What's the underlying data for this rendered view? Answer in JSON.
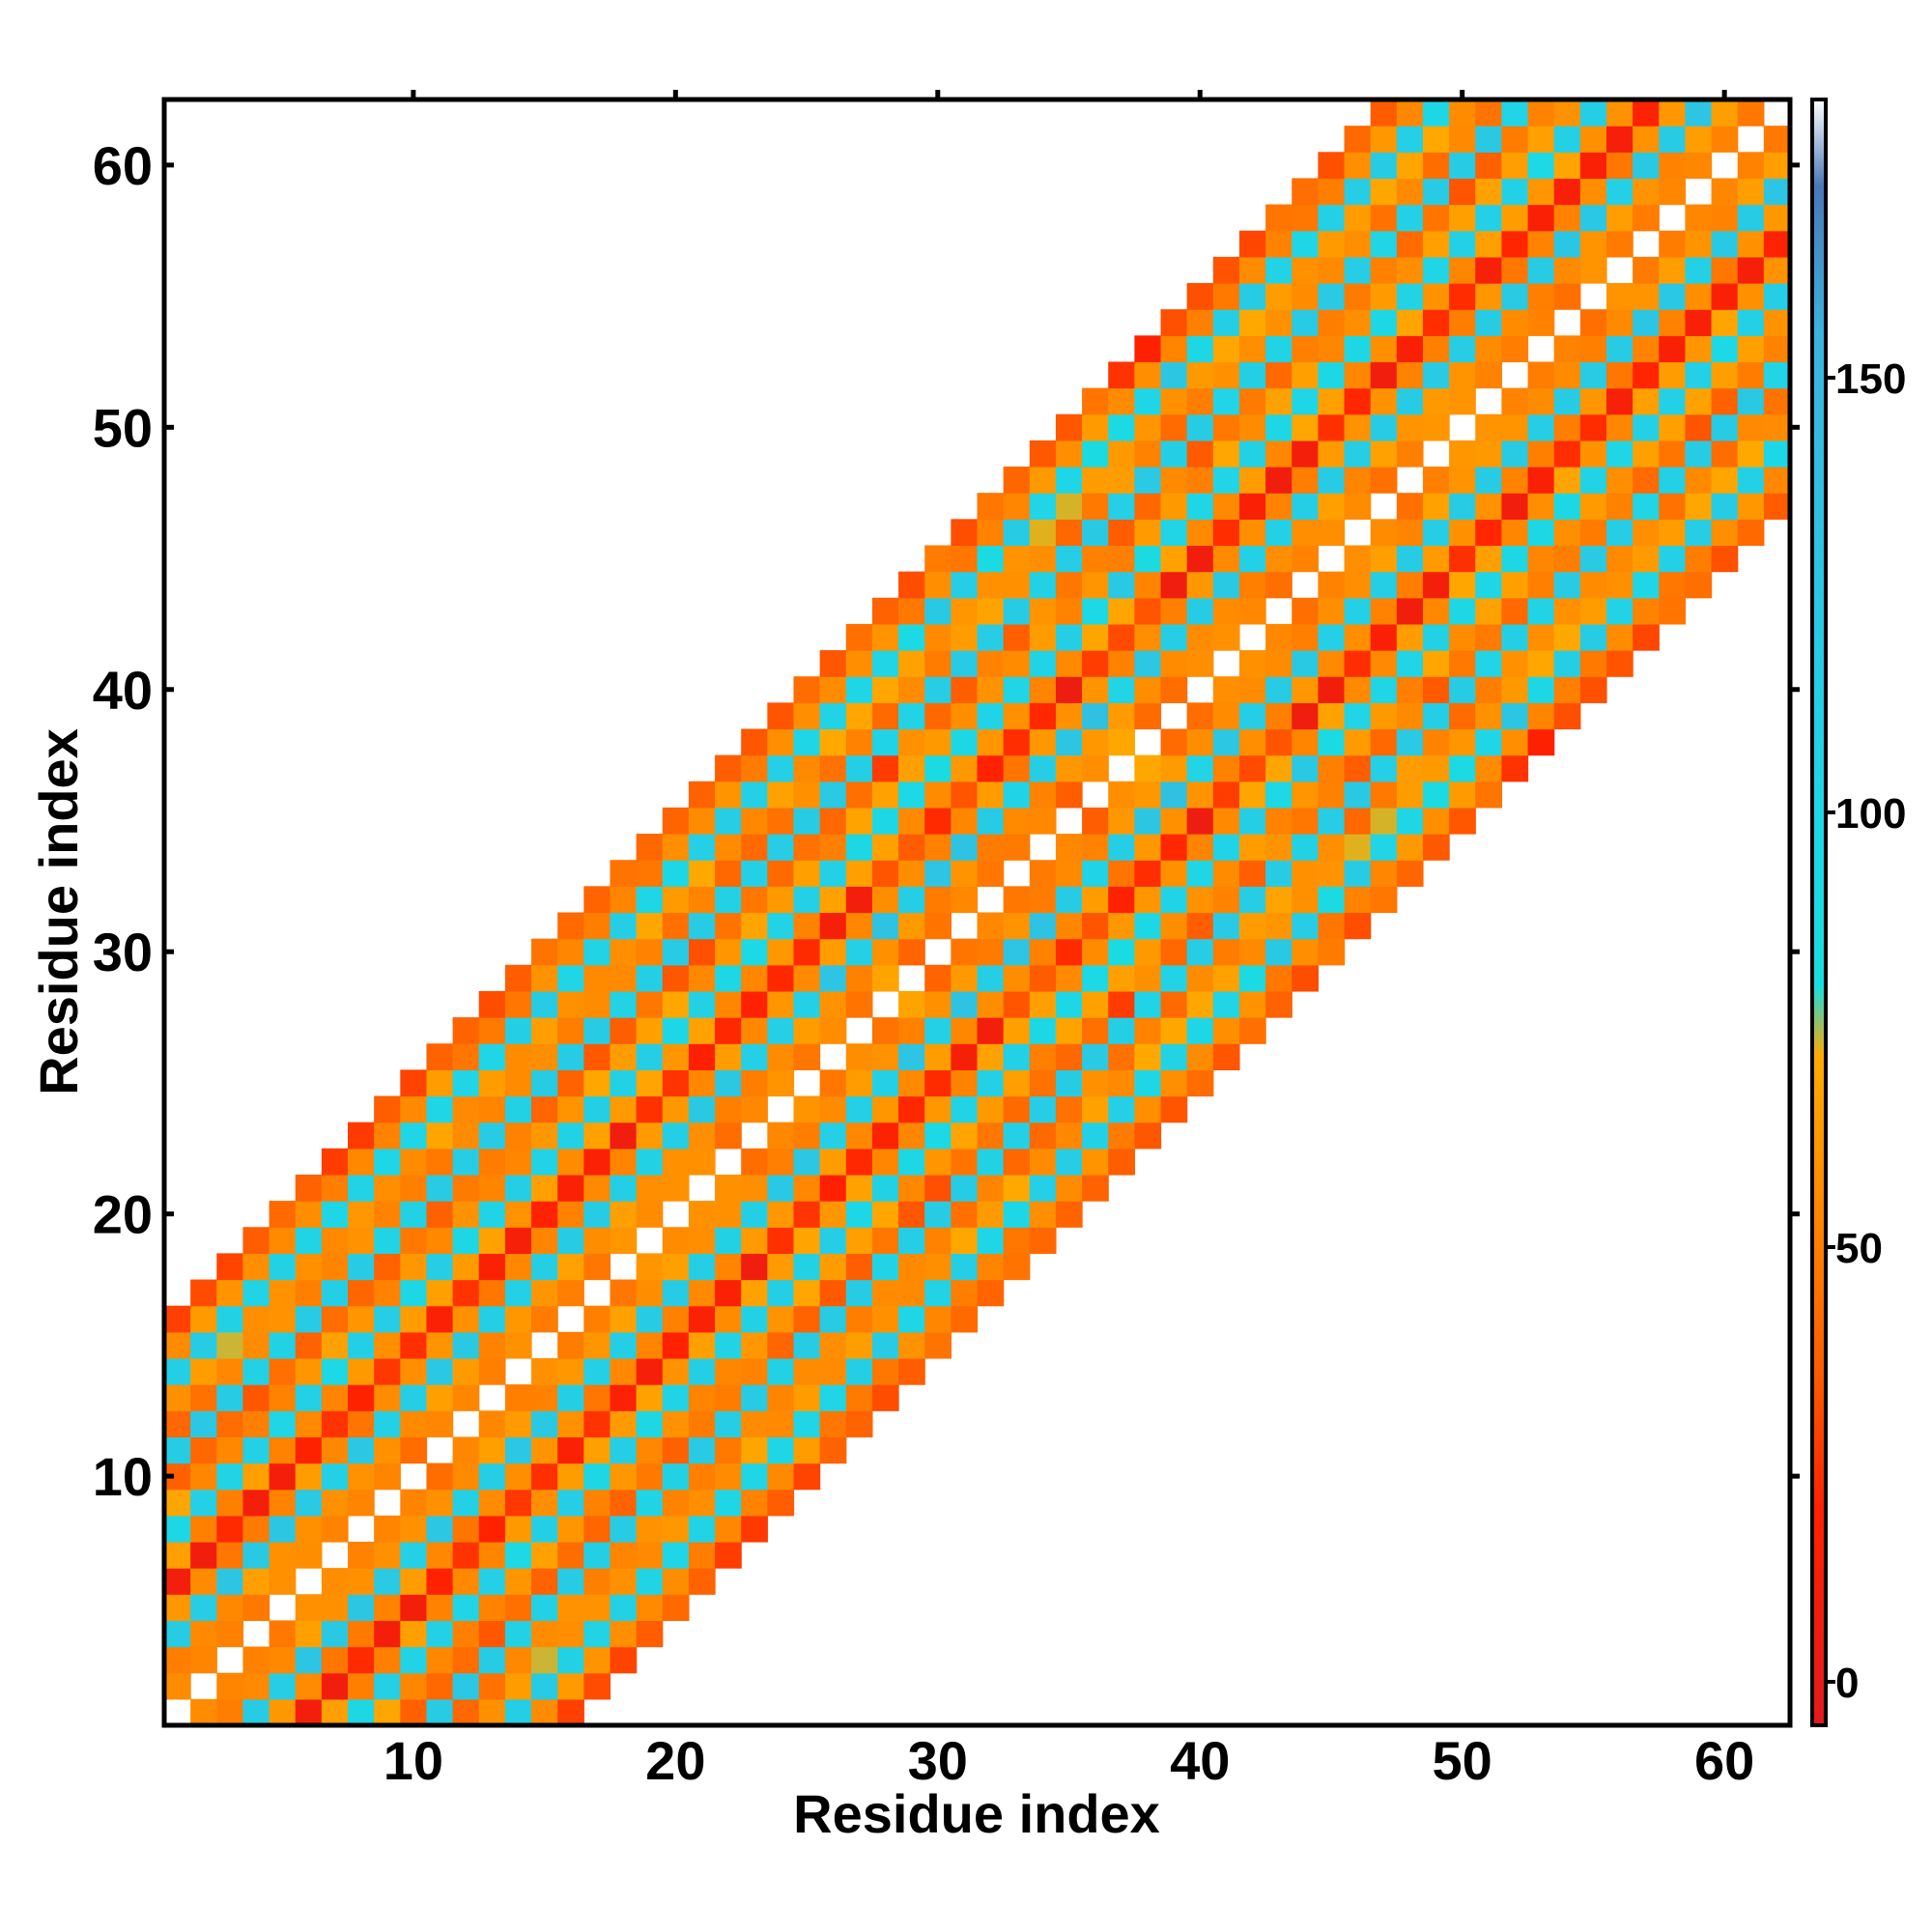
{
  "chart_data": {
    "type": "heatmap",
    "title": "",
    "xlabel": "Residue index",
    "ylabel": "Residue index",
    "xlim": [
      0.5,
      62.5
    ],
    "ylim": [
      0.5,
      62.5
    ],
    "xticks": [
      10,
      20,
      30,
      40,
      50,
      60
    ],
    "yticks": [
      10,
      20,
      30,
      40,
      50,
      60
    ],
    "colorbar": {
      "range": [
        -5,
        182
      ],
      "ticks": [
        0,
        50,
        100,
        150
      ],
      "stops": [
        {
          "value": -5,
          "color": "#e31a1c"
        },
        {
          "value": 20,
          "color": "#ff2200"
        },
        {
          "value": 35,
          "color": "#ff5a00"
        },
        {
          "value": 50,
          "color": "#ff7f00"
        },
        {
          "value": 72,
          "color": "#ffaa00"
        },
        {
          "value": 80,
          "color": "#18dde0"
        },
        {
          "value": 100,
          "color": "#1fd6e6"
        },
        {
          "value": 155,
          "color": "#3ab4e0"
        },
        {
          "value": 172,
          "color": "#4a78b8"
        },
        {
          "value": 182,
          "color": "#ffffff"
        }
      ]
    },
    "band_pattern": [
      [
        1,
        52
      ],
      [
        2,
        58
      ],
      [
        3,
        118
      ],
      [
        4,
        56
      ],
      [
        5,
        16
      ],
      [
        6,
        60
      ],
      [
        7,
        104
      ],
      [
        8,
        60
      ],
      [
        9,
        42
      ],
      [
        10,
        112
      ],
      [
        11,
        50
      ],
      [
        12,
        64
      ],
      [
        13,
        108
      ],
      [
        14,
        56
      ],
      [
        15,
        36
      ]
    ],
    "cells_note_values_in_deg": true
  }
}
